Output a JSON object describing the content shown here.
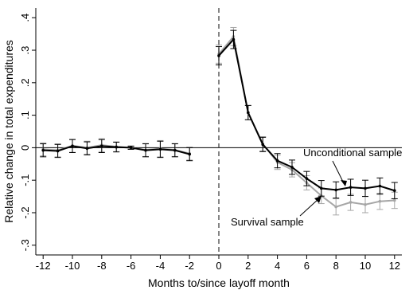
{
  "chart_data": {
    "type": "line",
    "xlabel": "Months to/since layoff month",
    "ylabel": "Relative change in total expenditures",
    "x": [
      -12,
      -11,
      -10,
      -9,
      -8,
      -7,
      -6,
      -5,
      -4,
      -3,
      -2,
      -1,
      0,
      1,
      2,
      3,
      4,
      5,
      6,
      7,
      8,
      9,
      10,
      11,
      12
    ],
    "xlim": [
      -12.5,
      12.5
    ],
    "ylim": [
      -0.33,
      0.43
    ],
    "x_ticks": [
      -12,
      -10,
      -8,
      -6,
      -4,
      -2,
      0,
      2,
      4,
      6,
      8,
      10,
      12
    ],
    "x_tick_labels": [
      "-12",
      "-10",
      "-8",
      "-6",
      "-4",
      "-2",
      "0",
      "2",
      "4",
      "6",
      "8",
      "10",
      "12"
    ],
    "y_ticks": [
      -0.3,
      -0.2,
      -0.1,
      0,
      0.1,
      0.2,
      0.3,
      0.4
    ],
    "y_tick_labels": [
      "-.3",
      "-.2",
      "-.1",
      "0",
      ".1",
      ".2",
      ".3",
      ".4"
    ],
    "zero_line": 0,
    "event_line_x": 0,
    "grid": false,
    "series": [
      {
        "name": "Survival sample",
        "color": "#a6a6a6",
        "values": [
          -0.005,
          -0.008,
          0.006,
          0.0,
          0.008,
          0.003,
          0.0,
          -0.007,
          -0.003,
          -0.007,
          -0.018,
          null,
          0.288,
          0.342,
          0.108,
          0.012,
          -0.045,
          -0.068,
          -0.108,
          -0.148,
          -0.182,
          -0.168,
          -0.175,
          -0.165,
          -0.162
        ],
        "err": [
          0.02,
          0.02,
          0.02,
          0.02,
          0.02,
          0.015,
          0.005,
          0.02,
          0.025,
          0.02,
          0.02,
          null,
          0.028,
          0.028,
          0.022,
          0.022,
          0.022,
          0.022,
          0.022,
          0.024,
          0.025,
          0.025,
          0.025,
          0.025,
          0.025
        ]
      },
      {
        "name": "Unconditional sample",
        "color": "#000000",
        "values": [
          -0.008,
          -0.01,
          0.005,
          -0.002,
          0.005,
          0.002,
          0.0,
          -0.008,
          -0.005,
          -0.008,
          -0.02,
          null,
          0.283,
          0.333,
          0.108,
          0.01,
          -0.04,
          -0.06,
          -0.095,
          -0.125,
          -0.13,
          -0.122,
          -0.125,
          -0.118,
          -0.132
        ],
        "err": [
          0.02,
          0.02,
          0.02,
          0.02,
          0.02,
          0.015,
          0.005,
          0.02,
          0.025,
          0.02,
          0.02,
          null,
          0.028,
          0.028,
          0.022,
          0.022,
          0.022,
          0.022,
          0.022,
          0.024,
          0.025,
          0.025,
          0.025,
          0.025,
          0.025
        ]
      }
    ],
    "annotations": [
      {
        "text": "Unconditional sample",
        "x": 8.85,
        "y": -0.105
      },
      {
        "text": "Survival sample",
        "x": 7.0,
        "y": -0.155
      }
    ]
  }
}
